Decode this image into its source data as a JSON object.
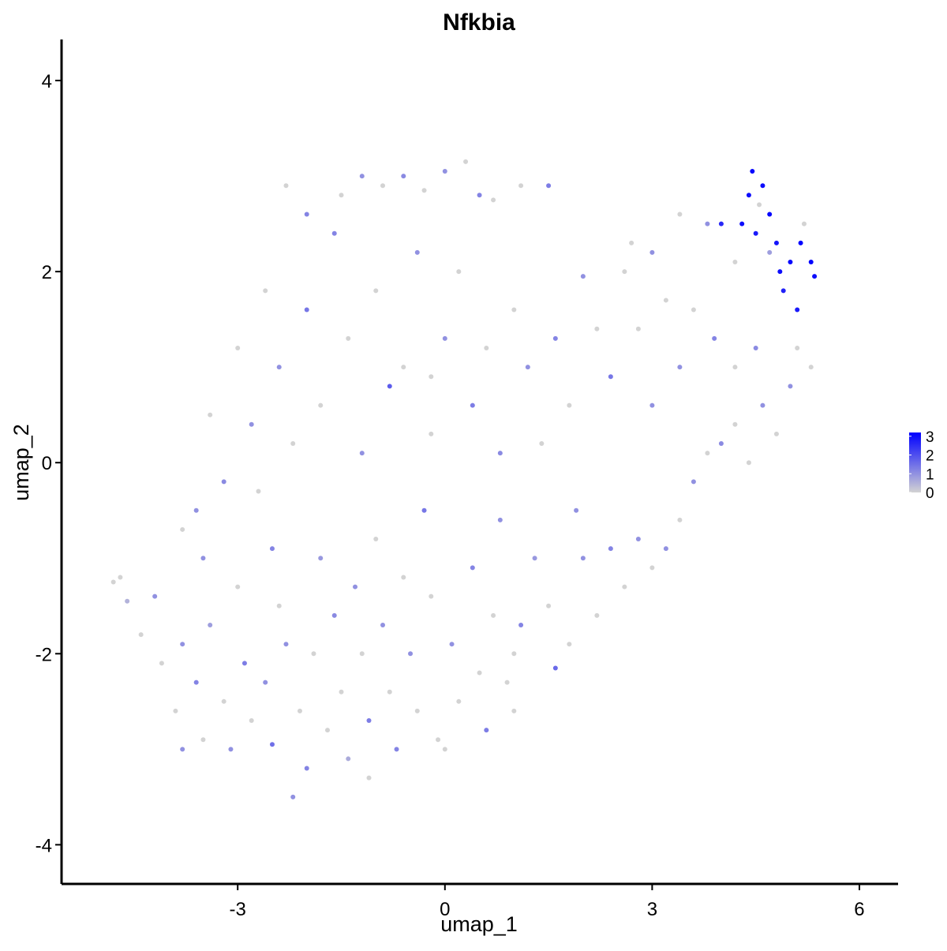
{
  "chart_data": {
    "type": "scatter",
    "title": "Nfkbia",
    "x_label": "umap_1",
    "y_label": "umap_2",
    "x": [
      -4.8,
      -4.7,
      -4.6,
      -4.4,
      -4.2,
      -4.1,
      -3.9,
      -3.8,
      -3.6,
      -3.5,
      -3.4,
      -3.2,
      -3.1,
      -3.0,
      -2.9,
      -2.8,
      -2.6,
      -2.5,
      -2.4,
      -2.3,
      -2.2,
      -2.1,
      -2.0,
      -1.9,
      -1.8,
      -1.7,
      -1.6,
      -1.5,
      -1.4,
      -1.3,
      -1.2,
      -1.1,
      -1.0,
      -0.9,
      -0.8,
      -0.7,
      -0.6,
      -0.5,
      -0.4,
      -0.3,
      -0.2,
      -0.1,
      0.0,
      0.1,
      0.2,
      0.4,
      0.5,
      0.6,
      0.7,
      0.8,
      1.0,
      1.1,
      1.0,
      1.3,
      1.5,
      1.6,
      1.8,
      2.0,
      2.2,
      2.4,
      2.6,
      2.8,
      3.0,
      3.2,
      3.4,
      3.6,
      3.8,
      4.0,
      4.2,
      4.4,
      4.6,
      4.8,
      5.0,
      5.1,
      5.3,
      4.5,
      4.2,
      3.9,
      3.6,
      3.4,
      3.2,
      3.0,
      2.8,
      2.6,
      2.4,
      2.2,
      2.0,
      1.8,
      1.6,
      1.4,
      1.2,
      1.0,
      0.8,
      0.6,
      0.4,
      0.2,
      0.0,
      -0.2,
      -0.4,
      -0.6,
      -0.8,
      -1.0,
      -1.2,
      -1.4,
      -1.6,
      -1.8,
      -2.0,
      -2.2,
      -2.4,
      -2.6,
      -2.8,
      -3.0,
      -3.2,
      -3.4,
      -3.6,
      -3.8,
      -3.5,
      -2.7,
      -2.3,
      -2.0,
      -1.5,
      -1.2,
      -0.9,
      -0.6,
      -0.3,
      0.0,
      0.3,
      0.5,
      0.7,
      1.1,
      1.5,
      2.7,
      3.0,
      3.4,
      3.8,
      4.0,
      4.2,
      4.4,
      4.45,
      4.5,
      4.6,
      4.7,
      4.8,
      4.85,
      4.9,
      5.0,
      5.1,
      5.15,
      5.3,
      5.35,
      4.55,
      4.3,
      5.2,
      4.7,
      0.9,
      -1.1,
      -3.8,
      -2.5,
      -0.2,
      1.9
    ],
    "y": [
      -1.25,
      -1.2,
      -1.45,
      -1.8,
      -1.4,
      -2.1,
      -2.6,
      -1.9,
      -2.3,
      -2.9,
      -1.7,
      -2.5,
      -3.0,
      -1.3,
      -2.1,
      -2.7,
      -2.3,
      -2.95,
      -1.5,
      -1.9,
      -3.5,
      -2.6,
      -3.2,
      -2.0,
      -1.0,
      -2.8,
      -1.6,
      -2.4,
      -3.1,
      -1.3,
      -2.0,
      -2.7,
      -0.8,
      -1.7,
      -2.4,
      -3.0,
      -1.2,
      -2.0,
      -2.6,
      -0.5,
      -1.4,
      -2.9,
      -3.0,
      -1.9,
      -2.5,
      -1.1,
      -2.2,
      -2.8,
      -1.6,
      -0.6,
      -2.0,
      -1.7,
      -2.6,
      -1.0,
      -1.5,
      -2.15,
      -1.9,
      -1.0,
      -1.6,
      -0.9,
      -1.3,
      -0.8,
      -1.1,
      -0.9,
      -0.6,
      -0.2,
      0.1,
      0.2,
      0.4,
      0.0,
      0.6,
      0.3,
      0.8,
      1.2,
      1.0,
      1.2,
      1.0,
      1.3,
      1.6,
      1.0,
      1.7,
      0.6,
      1.4,
      2.0,
      0.9,
      1.4,
      1.95,
      0.6,
      1.3,
      0.2,
      1.0,
      1.6,
      0.1,
      1.2,
      0.6,
      2.0,
      1.3,
      0.3,
      2.2,
      1.0,
      0.8,
      1.8,
      0.1,
      1.3,
      2.4,
      0.6,
      1.6,
      0.2,
      1.0,
      1.8,
      0.4,
      1.2,
      -0.2,
      0.5,
      -0.5,
      -0.7,
      -1.0,
      -0.3,
      2.9,
      2.6,
      2.8,
      3.0,
      2.9,
      3.0,
      2.85,
      3.05,
      3.15,
      2.8,
      2.75,
      2.9,
      2.9,
      2.3,
      2.2,
      2.6,
      2.5,
      2.5,
      2.1,
      2.8,
      3.05,
      2.4,
      2.9,
      2.6,
      2.3,
      2.0,
      1.8,
      2.1,
      1.6,
      2.3,
      2.1,
      1.95,
      2.7,
      2.5,
      2.5,
      2.2,
      -2.3,
      -3.3,
      -3.0,
      -0.9,
      0.9,
      -0.5
    ],
    "values": [
      0,
      0,
      0.5,
      0,
      1,
      0,
      0,
      1,
      1.2,
      0,
      0.8,
      0,
      1,
      0,
      1.3,
      0,
      1,
      1.5,
      0,
      1,
      1,
      0,
      1.2,
      0,
      0.9,
      0,
      1.1,
      0,
      0.6,
      1,
      0,
      1.3,
      0,
      1,
      0,
      1.2,
      0,
      1,
      0,
      1.4,
      0,
      0,
      0,
      1,
      0,
      1.2,
      0,
      1.3,
      0,
      1,
      0,
      1.2,
      0,
      0.9,
      0,
      1.6,
      0,
      1,
      0,
      1.2,
      0,
      1,
      0,
      1,
      0,
      1,
      0,
      1.1,
      0,
      0,
      1,
      0,
      1,
      0,
      0,
      1.1,
      0,
      1.2,
      0,
      1,
      0,
      1,
      0,
      0,
      1.4,
      0,
      1,
      0,
      1.2,
      0,
      1,
      0,
      1.1,
      0,
      1.3,
      0,
      1,
      0,
      1,
      0,
      1.8,
      0,
      1,
      0,
      1.2,
      0,
      1.4,
      0,
      1,
      0,
      1,
      0,
      1.1,
      0,
      1,
      0,
      1,
      0,
      0,
      1.2,
      0,
      1,
      0,
      1.1,
      0,
      1,
      0,
      1.2,
      0,
      0,
      1.3,
      0,
      1,
      0,
      1,
      2.6,
      0,
      3.0,
      3.1,
      2.8,
      3.0,
      3.1,
      2.9,
      3.0,
      2.7,
      3.1,
      2.8,
      3.2,
      3.2,
      3.0,
      0,
      3.0,
      0,
      0.8,
      0,
      0,
      1,
      1.2,
      0,
      1
    ],
    "color_low": "#d3d3d3",
    "color_high": "#0000ff",
    "xlim": [
      -5.55,
      6.56
    ],
    "ylim": [
      -4.41,
      4.43
    ],
    "xticks": [
      -3,
      0,
      3,
      6
    ],
    "yticks": [
      -4,
      -2,
      0,
      2,
      4
    ],
    "colorbar": {
      "lim": [
        0,
        3.2
      ],
      "ticks": [
        0,
        1,
        2,
        3
      ]
    }
  }
}
